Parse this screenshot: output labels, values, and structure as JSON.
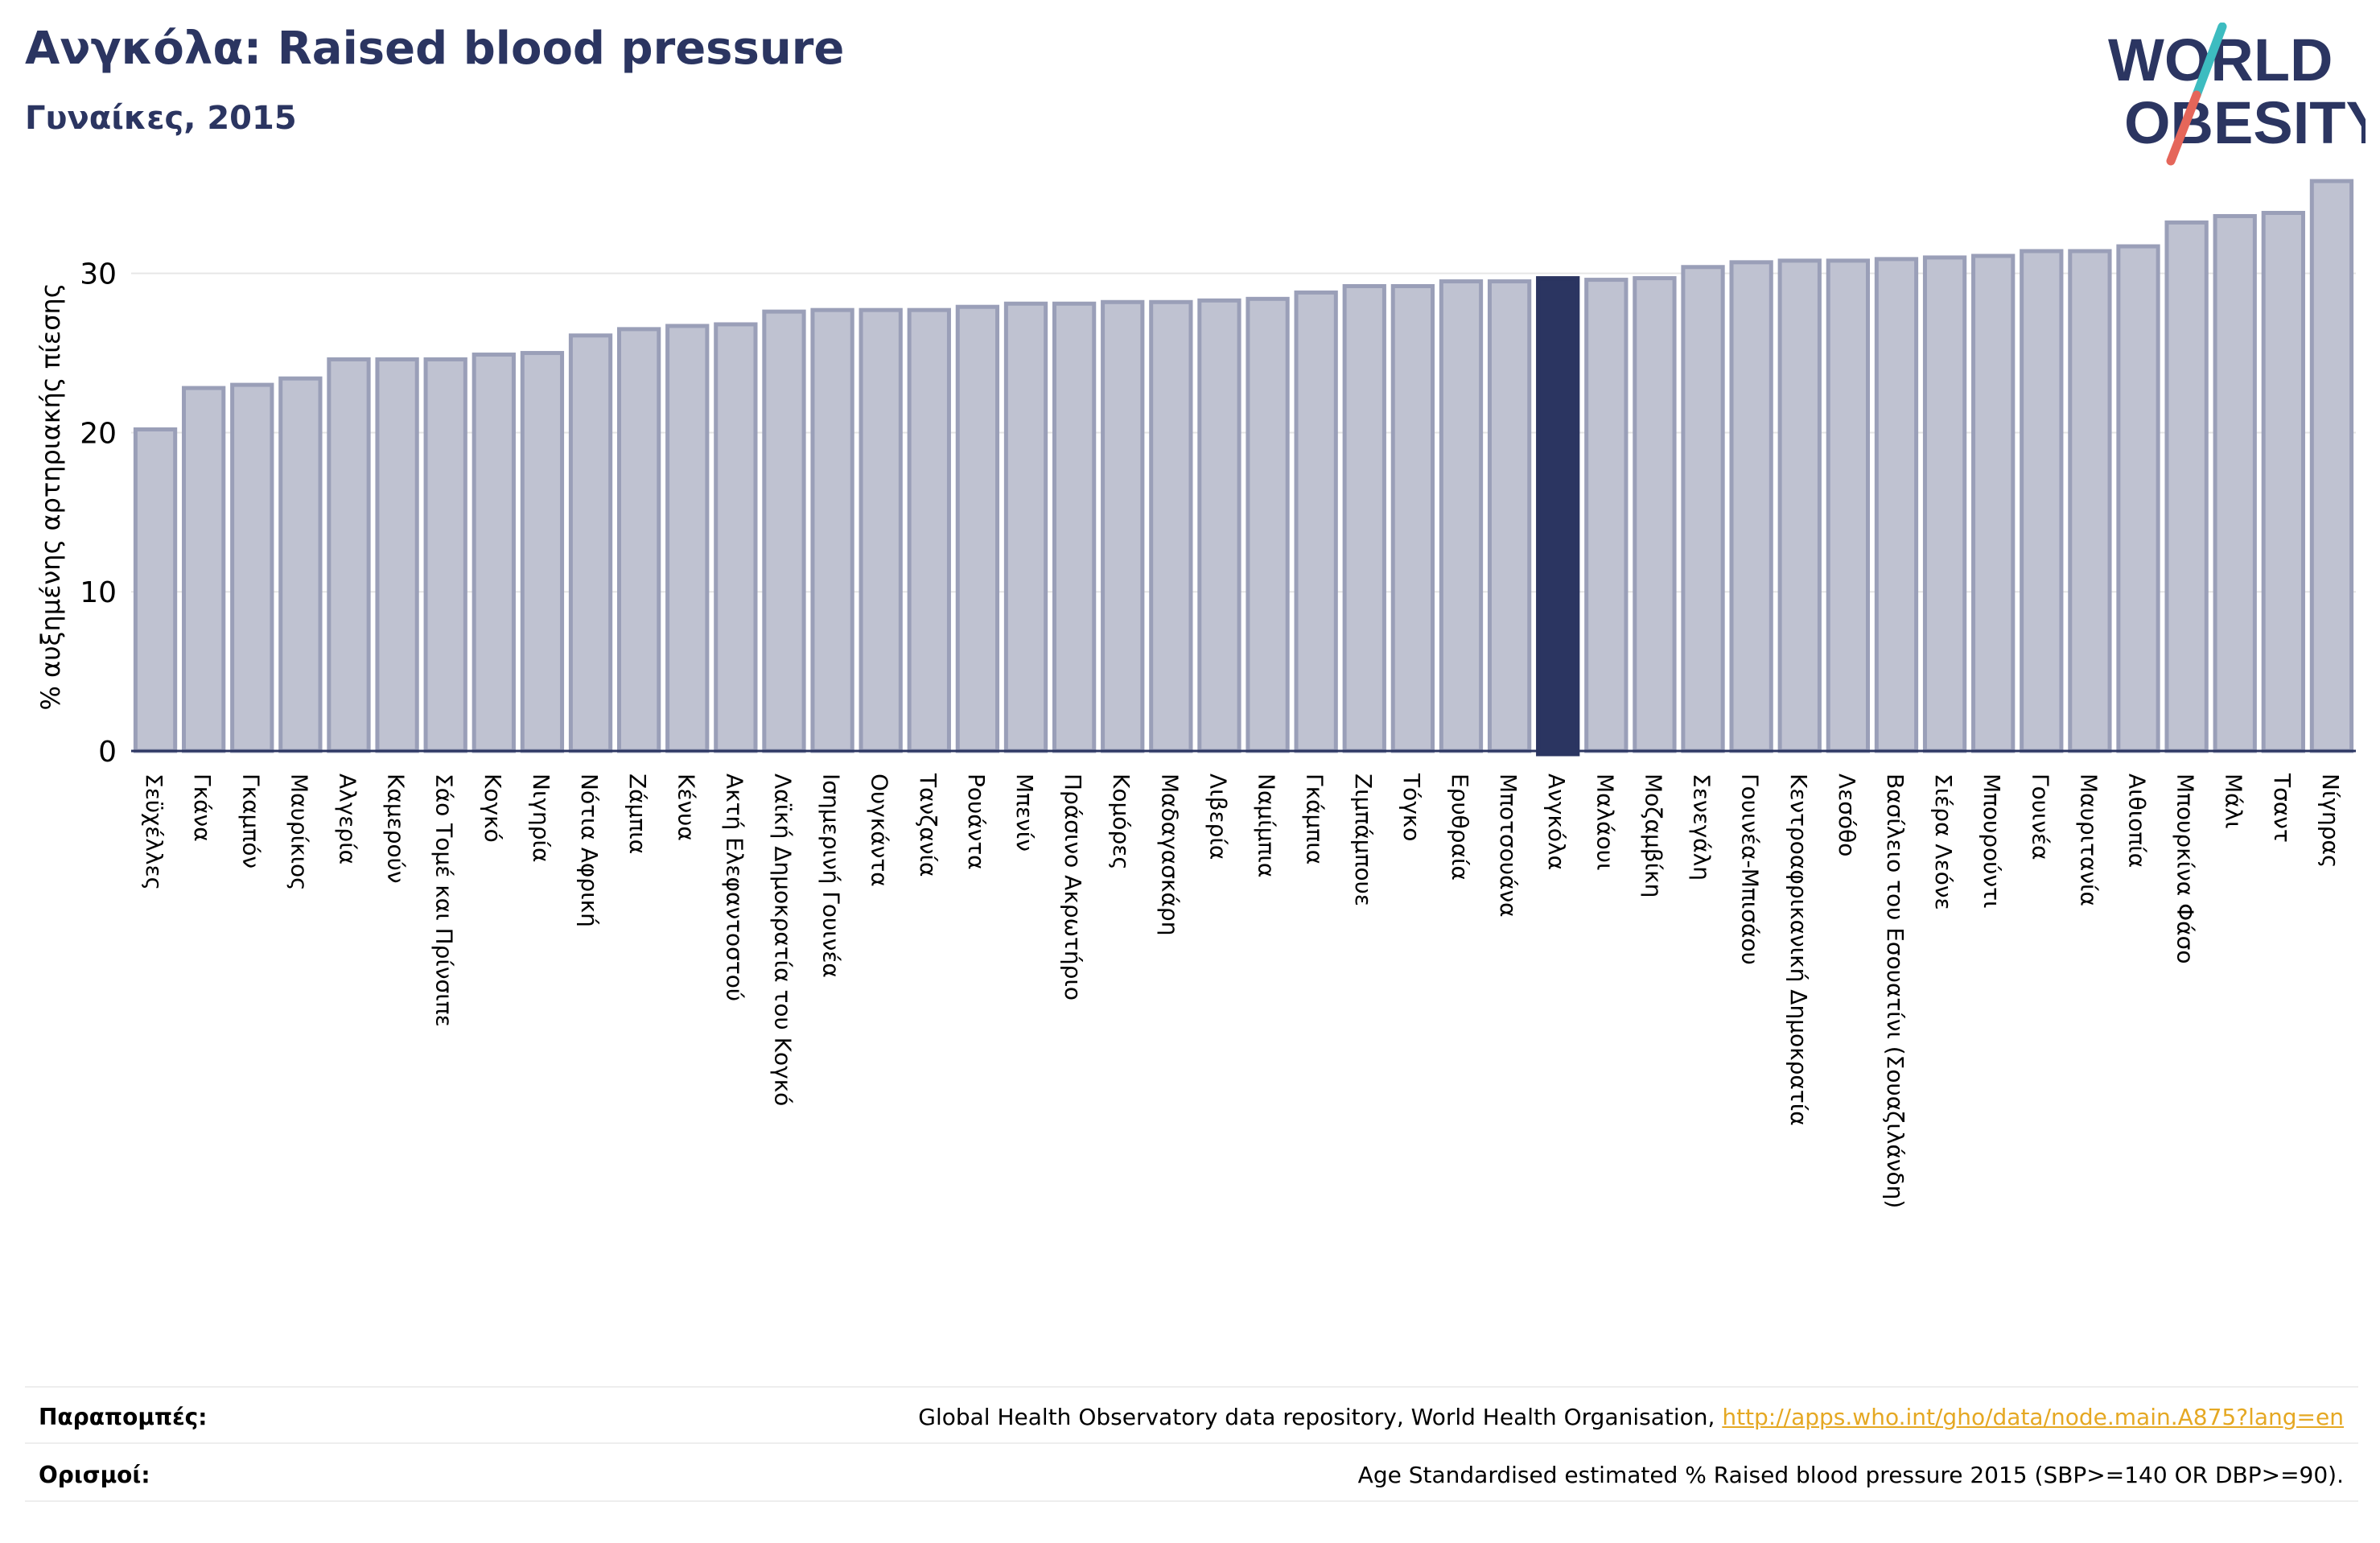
{
  "header": {
    "title": "Ανγκόλα: Raised blood pressure",
    "subtitle": "Γυναίκες, 2015"
  },
  "logo": {
    "line1": "WORLD",
    "line2": "OBESITY",
    "colors": {
      "text": "#2b3561",
      "slash_teal": "#3dbcc0",
      "slash_red": "#e5665a"
    }
  },
  "colors": {
    "bar": "#bfc2d1",
    "bar_edge": "#9a9fb8",
    "highlight": "#2b3561",
    "grid": "#e6e6e6",
    "axis": "#2b3561"
  },
  "chart_data": {
    "type": "bar",
    "ylabel": "% αυξημένης αρτηριακής πίεσης",
    "ylim": [
      0,
      36
    ],
    "yticks": [
      "0",
      "10",
      "20",
      "30"
    ],
    "grid": true,
    "highlight": "Ανγκόλα",
    "categories": [
      "Σεϋχέλλες",
      "Γκάνα",
      "Γκαμπόν",
      "Μαυρίκιος",
      "Αλγερία",
      "Καμερούν",
      "Σάο Τομέ και Πρίνσιπε",
      "Κογκό",
      "Νιγηρία",
      "Νότια Αφρική",
      "Ζάμπια",
      "Κένυα",
      "Ακτή Ελεφαντοστού",
      "Λαϊκή Δημοκρατία του Κογκό",
      "Ισημερινή Γουινέα",
      "Ουγκάντα",
      "Τανζανία",
      "Ρουάντα",
      "Μπενίν",
      "Πράσινο Ακρωτήριο",
      "Κομόρες",
      "Μαδαγασκάρη",
      "Λιβερία",
      "Ναμίμπια",
      "Γκάμπια",
      "Ζιμπάμπουε",
      "Τόγκο",
      "Ερυθραία",
      "Μποτσουάνα",
      "Ανγκόλα",
      "Μαλάουι",
      "Μοζαμβίκη",
      "Σενεγάλη",
      "Γουινέα-Μπισάου",
      "Κεντροαφρικανική Δημοκρατία",
      "Λεσόθο",
      "Βασίλειο του Εσουατίνι (Σουαζιλάνδη)",
      "Σιέρα Λεόνε",
      "Μπουρούντι",
      "Γουινέα",
      "Μαυριτανία",
      "Αιθιοπία",
      "Μπουρκίνα Φάσο",
      "Μάλι",
      "Τσαντ",
      "Νίγηρας"
    ],
    "values": [
      20.2,
      22.8,
      23.0,
      23.4,
      24.6,
      24.6,
      24.6,
      24.9,
      25.0,
      26.1,
      26.5,
      26.7,
      26.8,
      27.6,
      27.7,
      27.7,
      27.7,
      27.9,
      28.1,
      28.1,
      28.2,
      28.2,
      28.3,
      28.4,
      28.8,
      29.2,
      29.2,
      29.5,
      29.5,
      29.7,
      29.6,
      29.7,
      30.4,
      30.7,
      30.8,
      30.8,
      30.9,
      31.0,
      31.1,
      31.4,
      31.4,
      31.7,
      33.2,
      33.6,
      33.8,
      35.8
    ]
  },
  "footer": {
    "references_label": "Παραπομπές:",
    "references_text": "Global Health Observatory data repository, World Health Organisation, ",
    "references_link": "http://apps.who.int/gho/data/node.main.A875?lang=en",
    "definitions_label": "Ορισμοί:",
    "definitions_text": "Age Standardised estimated % Raised blood pressure 2015 (SBP>=140 OR DBP>=90)."
  }
}
